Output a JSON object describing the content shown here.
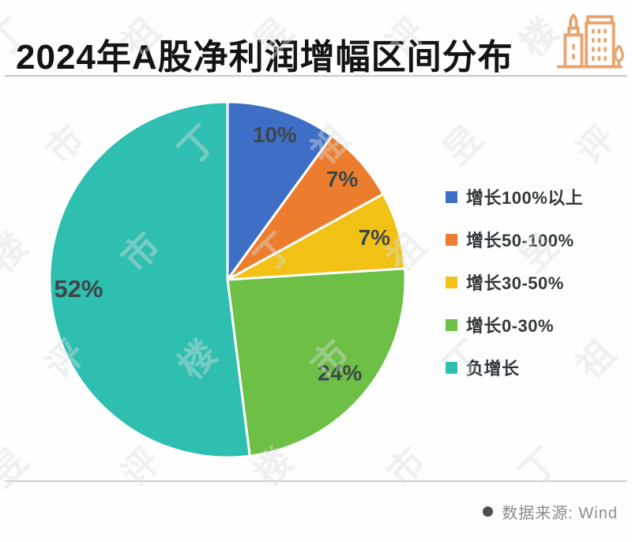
{
  "header": {
    "title": "2024年A股净利润增幅区间分布"
  },
  "chart_data": {
    "type": "pie",
    "title": "2024年A股净利润增幅区间分布",
    "categories": [
      "增长100%以上",
      "增长50-100%",
      "增长30-50%",
      "增长0-30%",
      "负增长"
    ],
    "values": [
      10,
      7,
      7,
      24,
      52
    ],
    "labels": [
      "10%",
      "7%",
      "7%",
      "24%",
      "52%"
    ],
    "colors": [
      "#3e6ec5",
      "#ed7d2e",
      "#f2c115",
      "#6dbf45",
      "#2fbfb0"
    ],
    "unit": "%",
    "start_angle_deg": 0,
    "direction": "clockwise",
    "legend_position": "right",
    "label_color": "#3d474a",
    "slice_border_color": "#ffffff",
    "source": "Wind"
  },
  "footer": {
    "source_label": "数据来源: Wind"
  },
  "watermark": {
    "text": "丁祖昱评楼市"
  },
  "icons": {
    "brand": "buildings-icon",
    "brand_color": "#e9a36b",
    "footer_bullet": "dot-icon"
  }
}
